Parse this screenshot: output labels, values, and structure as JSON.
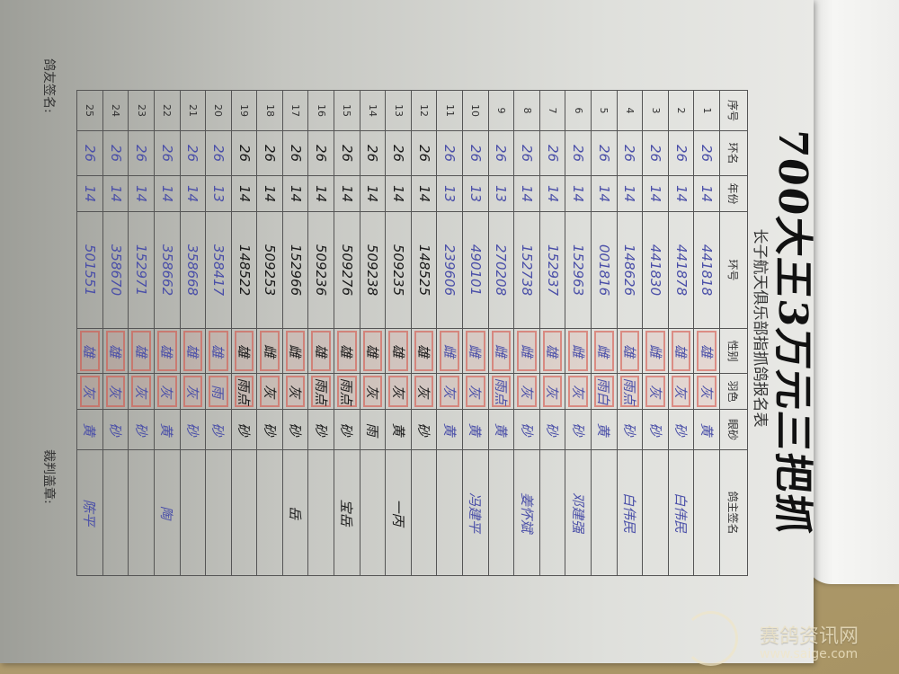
{
  "form": {
    "handwritten_title": "700大王3万元三把抓",
    "subtitle": "长子航天俱乐部指抓鸽报名表",
    "columns": [
      "序号",
      "环名",
      "年份",
      "环号",
      "性别",
      "羽色",
      "眼砂",
      "鸽主签名"
    ],
    "ink_colors": {
      "blue": "#4a4fa8",
      "black": "#1a1a1a"
    },
    "stamp_color": "#d65046",
    "rows": [
      {
        "no": "1",
        "prefix": "26",
        "year": "14",
        "ring": "441818",
        "sex": "雄",
        "color": "灰",
        "eye": "黄",
        "owner": "",
        "ink": "blue"
      },
      {
        "no": "2",
        "prefix": "26",
        "year": "14",
        "ring": "441878",
        "sex": "雄",
        "color": "灰",
        "eye": "砂",
        "owner": "白伟民",
        "ink": "blue"
      },
      {
        "no": "3",
        "prefix": "26",
        "year": "14",
        "ring": "441830",
        "sex": "雌",
        "color": "灰",
        "eye": "砂",
        "owner": "",
        "ink": "blue"
      },
      {
        "no": "4",
        "prefix": "26",
        "year": "14",
        "ring": "148626",
        "sex": "雄",
        "color": "雨点",
        "eye": "砂",
        "owner": "白伟民",
        "ink": "blue"
      },
      {
        "no": "5",
        "prefix": "26",
        "year": "14",
        "ring": "001816",
        "sex": "雌",
        "color": "雨白",
        "eye": "黄",
        "owner": "",
        "ink": "blue"
      },
      {
        "no": "6",
        "prefix": "26",
        "year": "14",
        "ring": "152963",
        "sex": "雌",
        "color": "灰",
        "eye": "砂",
        "owner": "邓建强",
        "ink": "blue"
      },
      {
        "no": "7",
        "prefix": "26",
        "year": "14",
        "ring": "152937",
        "sex": "雄",
        "color": "灰",
        "eye": "砂",
        "owner": "",
        "ink": "blue"
      },
      {
        "no": "8",
        "prefix": "26",
        "year": "14",
        "ring": "152738",
        "sex": "雌",
        "color": "灰",
        "eye": "砂",
        "owner": "姜怀斌",
        "ink": "blue"
      },
      {
        "no": "9",
        "prefix": "26",
        "year": "13",
        "ring": "270208",
        "sex": "雌",
        "color": "雨点",
        "eye": "黄",
        "owner": "",
        "ink": "blue"
      },
      {
        "no": "10",
        "prefix": "26",
        "year": "13",
        "ring": "490101",
        "sex": "雌",
        "color": "灰",
        "eye": "黄",
        "owner": "冯建平",
        "ink": "blue"
      },
      {
        "no": "11",
        "prefix": "26",
        "year": "13",
        "ring": "239606",
        "sex": "雌",
        "color": "灰",
        "eye": "黄",
        "owner": "",
        "ink": "blue"
      },
      {
        "no": "12",
        "prefix": "26",
        "year": "14",
        "ring": "148525",
        "sex": "雄",
        "color": "灰",
        "eye": "砂",
        "owner": "",
        "ink": "black"
      },
      {
        "no": "13",
        "prefix": "26",
        "year": "14",
        "ring": "509235",
        "sex": "雄",
        "color": "灰",
        "eye": "黄",
        "owner": "一丙",
        "ink": "black"
      },
      {
        "no": "14",
        "prefix": "26",
        "year": "14",
        "ring": "509238",
        "sex": "雄",
        "color": "灰",
        "eye": "雨",
        "owner": "",
        "ink": "black"
      },
      {
        "no": "15",
        "prefix": "26",
        "year": "14",
        "ring": "509276",
        "sex": "雄",
        "color": "雨点",
        "eye": "砂",
        "owner": "宝岳",
        "ink": "black"
      },
      {
        "no": "16",
        "prefix": "26",
        "year": "14",
        "ring": "509236",
        "sex": "雄",
        "color": "雨点",
        "eye": "砂",
        "owner": "",
        "ink": "black"
      },
      {
        "no": "17",
        "prefix": "26",
        "year": "14",
        "ring": "152966",
        "sex": "雌",
        "color": "灰",
        "eye": "砂",
        "owner": "岳",
        "ink": "black"
      },
      {
        "no": "18",
        "prefix": "26",
        "year": "14",
        "ring": "509253",
        "sex": "雌",
        "color": "灰",
        "eye": "砂",
        "owner": "",
        "ink": "black"
      },
      {
        "no": "19",
        "prefix": "26",
        "year": "14",
        "ring": "148522",
        "sex": "雄",
        "color": "雨点",
        "eye": "砂",
        "owner": "",
        "ink": "black"
      },
      {
        "no": "20",
        "prefix": "26",
        "year": "13",
        "ring": "358417",
        "sex": "雄",
        "color": "雨",
        "eye": "砂",
        "owner": "",
        "ink": "blue"
      },
      {
        "no": "21",
        "prefix": "26",
        "year": "14",
        "ring": "358668",
        "sex": "雄",
        "color": "灰",
        "eye": "砂",
        "owner": "",
        "ink": "blue"
      },
      {
        "no": "22",
        "prefix": "26",
        "year": "14",
        "ring": "358662",
        "sex": "雄",
        "color": "灰",
        "eye": "黄",
        "owner": "陶",
        "ink": "blue"
      },
      {
        "no": "23",
        "prefix": "26",
        "year": "14",
        "ring": "152971",
        "sex": "雄",
        "color": "灰",
        "eye": "砂",
        "owner": "",
        "ink": "blue"
      },
      {
        "no": "24",
        "prefix": "26",
        "year": "14",
        "ring": "358670",
        "sex": "雄",
        "color": "灰",
        "eye": "砂",
        "owner": "",
        "ink": "blue"
      },
      {
        "no": "25",
        "prefix": "26",
        "year": "14",
        "ring": "501551",
        "sex": "雄",
        "color": "灰",
        "eye": "黄",
        "owner": "陈平",
        "ink": "blue"
      }
    ],
    "footer_member_sign": "鸽友签名:",
    "footer_judge_stamp": "裁判盖章:"
  },
  "watermark": {
    "name": "赛鸽资讯网",
    "url": "www.saige.com"
  }
}
